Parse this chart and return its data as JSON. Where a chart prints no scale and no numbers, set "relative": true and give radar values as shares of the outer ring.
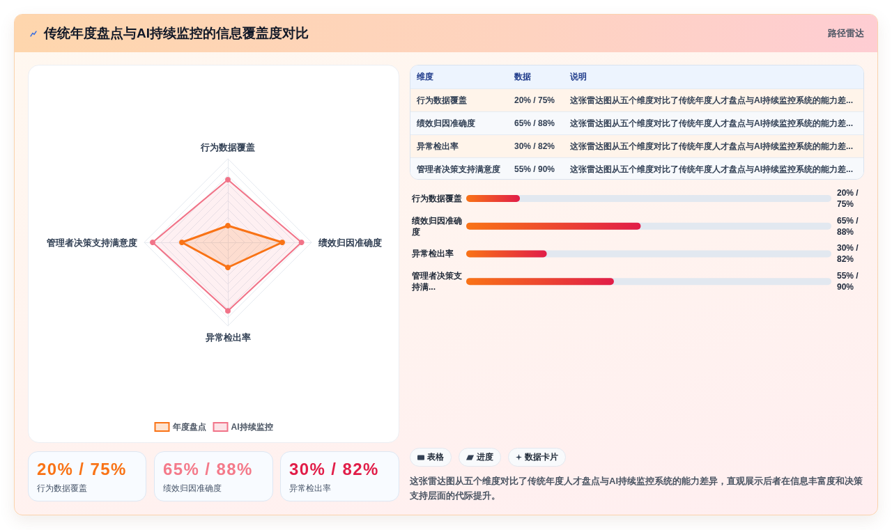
{
  "chart_data": [
    {
      "type": "other",
      "title": "传统年度盘点与AI持续监控的信息覆盖度对比",
      "subtitle": "路径雷达"
    },
    {
      "type": "radar",
      "categories": [
        "行为数据覆盖",
        "绩效归因准确度",
        "异常检出率",
        "管理者决策支持满意度"
      ],
      "relative": true,
      "series": [
        {
          "name": "年度盘点",
          "color": "#f97316",
          "values": [
            0.2,
            0.65,
            0.3,
            0.55
          ]
        },
        {
          "name": "AI持续监控",
          "color": "#f17388",
          "values": [
            0.75,
            0.88,
            0.82,
            0.9
          ]
        }
      ],
      "grid": true,
      "legend": "bottom",
      "marker": "circle"
    },
    {
      "type": "other",
      "categories": [
        "维度",
        "数据",
        "说明"
      ],
      "y_categories": [
        "行为数据覆盖",
        "绩效归因准确度",
        "异常检出率",
        "管理者决策支持满意度"
      ],
      "cell_labels": [
        [
          "20% / 75%",
          "这张雷达图从五个维度对比了传统年度人才盘点与AI持续监控系统的能力差..."
        ],
        [
          "65% / 88%",
          "这张雷达图从五个维度对比了传统年度人才盘点与AI持续监控系统的能力差..."
        ],
        [
          "30% / 82%",
          "这张雷达图从五个维度对比了传统年度人才盘点与AI持续监控系统的能力差..."
        ],
        [
          "55% / 90%",
          "这张雷达图从五个维度对比了传统年度人才盘点与AI持续监控系统的能力差..."
        ]
      ]
    },
    {
      "type": "bar",
      "orientation": "horizontal",
      "categories": [
        "行为数据覆盖",
        "绩效归因准确度",
        "异常检出率",
        "管理者决策支持满..."
      ],
      "values": [
        20,
        65,
        30,
        55
      ],
      "value_labels": [
        "20% / 75%",
        "65% / 88%",
        "30% / 82%",
        "55% / 90%"
      ],
      "color": "#f97316",
      "xlim": [
        0,
        136
      ],
      "tick_labels": "y"
    },
    {
      "type": "other",
      "categories": [
        "行为数据覆盖",
        "绩效归因准确度",
        "异常检出率"
      ],
      "value_labels": [
        "20% / 75%",
        "65% / 88%",
        "30% / 82%"
      ]
    },
    {
      "type": "other",
      "categories": [
        "表格",
        "进度",
        "数据卡片"
      ],
      "annotations": [
        "这张雷达图从五个维度对比了传统年度人才盘点与AI持续监控系统的能力差异，直观展示后者在信息丰富度和决策支持层面的代际提升。"
      ]
    }
  ]
}
